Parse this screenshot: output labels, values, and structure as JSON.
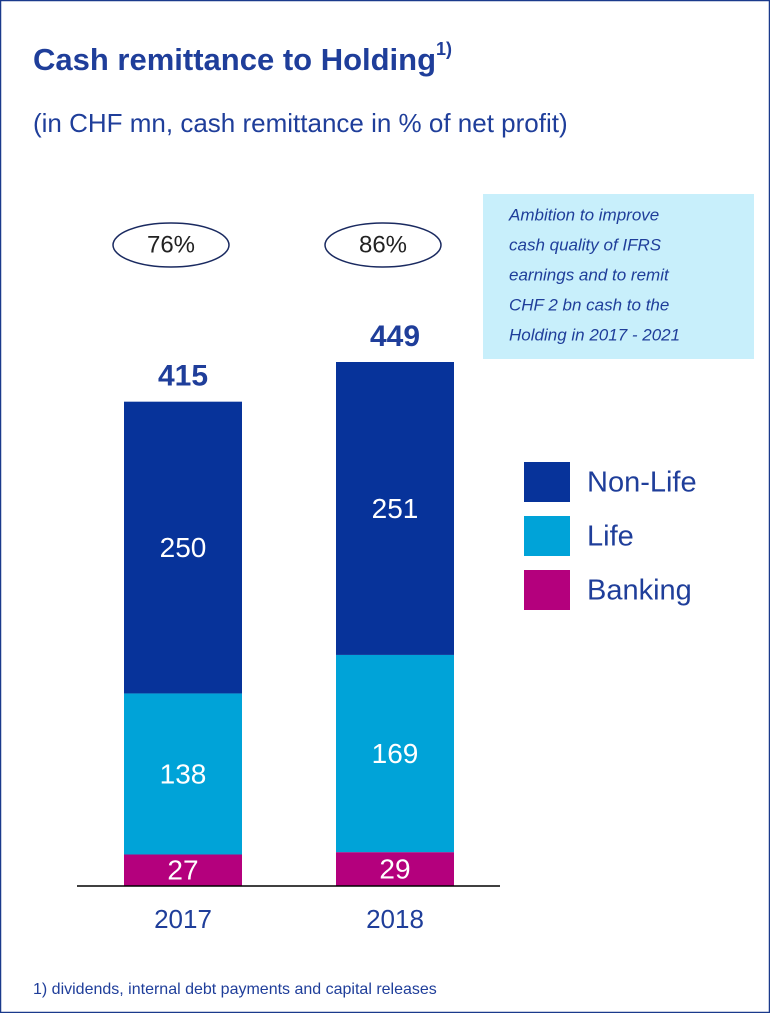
{
  "chart_data": {
    "type": "stacked_bar",
    "title": "Cash remittance to Holding",
    "title_superscript": "1)",
    "subtitle": "(in CHF mn, cash remittance in % of net profit)",
    "categories": [
      "2017",
      "2018"
    ],
    "series": [
      {
        "name": "Banking",
        "color": "#b4007d",
        "values": [
          27,
          29
        ]
      },
      {
        "name": "Life",
        "color": "#00a3d8",
        "values": [
          138,
          169
        ]
      },
      {
        "name": "Non-Life",
        "color": "#07339a",
        "values": [
          250,
          251
        ]
      }
    ],
    "totals": [
      415,
      449
    ],
    "ratios": [
      76,
      86
    ],
    "ratio_labels": [
      "76%",
      "86%"
    ],
    "annotation": [
      "Ambition to improve",
      "cash quality of IFRS",
      "earnings and to remit",
      "CHF 2 bn cash to the",
      "Holding in 2017 - 2021"
    ],
    "footnote": "1) dividends, internal debt payments and capital releases"
  }
}
